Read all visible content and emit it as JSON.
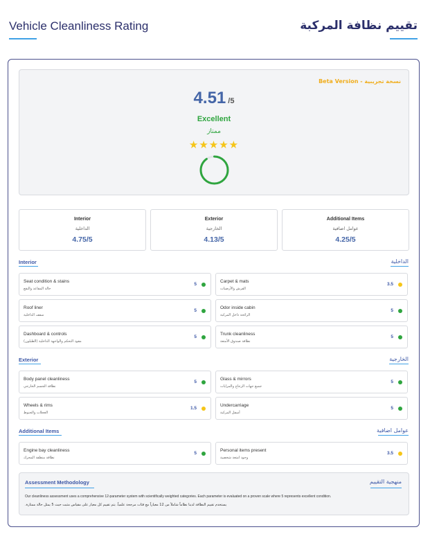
{
  "header": {
    "title_en": "Vehicle Cleanliness Rating",
    "title_ar": "تقييم نظافة المركبة"
  },
  "overall": {
    "beta": "Beta Version - نسخة تجريبية",
    "score": "4.51",
    "max": "/5",
    "rating_en": "Excellent",
    "rating_ar": "ممتاز",
    "stars": "★★★★★",
    "stars_count": 5,
    "ring_fraction": 0.902
  },
  "categories": [
    {
      "en": "Interior",
      "ar": "الداخلية",
      "score": "4.75/5"
    },
    {
      "en": "Exterior",
      "ar": "الخارجية",
      "score": "4.13/5"
    },
    {
      "en": "Additional Items",
      "ar": "عوامل اضافية",
      "score": "4.25/5"
    }
  ],
  "sections": {
    "interior": {
      "en": "Interior",
      "ar": "الداخلية",
      "items": [
        {
          "en": "Seat condition & stains",
          "ar": "حالة المقاعد والبقع",
          "score": "5",
          "status": "green"
        },
        {
          "en": "Carpet & mats",
          "ar": "الفرش والأرضيات",
          "score": "3.5",
          "status": "yellow"
        },
        {
          "en": "Roof liner",
          "ar": "سقف الداخلية",
          "score": "5",
          "status": "green"
        },
        {
          "en": "Odor inside cabin",
          "ar": "الرائحة داخل المركبة",
          "score": "5",
          "status": "green"
        },
        {
          "en": "Dashboard & controls",
          "ar": "مقود التحكم والواجهة الداخلية (الطبلون)",
          "score": "5",
          "status": "green"
        },
        {
          "en": "Trunk cleanliness",
          "ar": "نظافة صندوق الأمتعة",
          "score": "5",
          "status": "green"
        }
      ]
    },
    "exterior": {
      "en": "Exterior",
      "ar": "الخارجية",
      "items": [
        {
          "en": "Body panel cleanliness",
          "ar": "نظافة الجسم الخارجي",
          "score": "5",
          "status": "green"
        },
        {
          "en": "Glass & mirrors",
          "ar": "جميع جهات الزجاج والمرايات",
          "score": "5",
          "status": "green"
        },
        {
          "en": "Wheels & rims",
          "ar": "العجلات والجنوط",
          "score": "1.5",
          "status": "yellow"
        },
        {
          "en": "Undercarriage",
          "ar": "أسفل المركبة",
          "score": "5",
          "status": "green"
        }
      ]
    },
    "additional": {
      "en": "Additional Items",
      "ar": "عوامل اضافية",
      "items": [
        {
          "en": "Engine bay cleanliness",
          "ar": "نظافة منطقة المحرك",
          "score": "5",
          "status": "green"
        },
        {
          "en": "Personal items present",
          "ar": "وجود امتعة شخصية",
          "score": "3.5",
          "status": "yellow"
        }
      ]
    }
  },
  "methodology": {
    "title_en": "Assessment Methodology",
    "title_ar": "منهجية التقييم",
    "text_en": "Our cleanliness assessment uses a comprehensive 12-parameter system with scientifically weighted categories. Each parameter is evaluated on a proven scale where 5 represents excellent condition.",
    "text_ar": "يستخدم تقييم النظافة لدينا نظاماً شاملاً من 12 معياراً مع فئات مرجحة علمياً. يتم تقييم كل معيار على مقياس مثبت حيث 5 يمثل حالة ممتازة."
  },
  "colors": {
    "accent": "#3c57a6",
    "green": "#2fa53f",
    "yellow": "#f5c518",
    "beta": "#f0ad1c"
  }
}
